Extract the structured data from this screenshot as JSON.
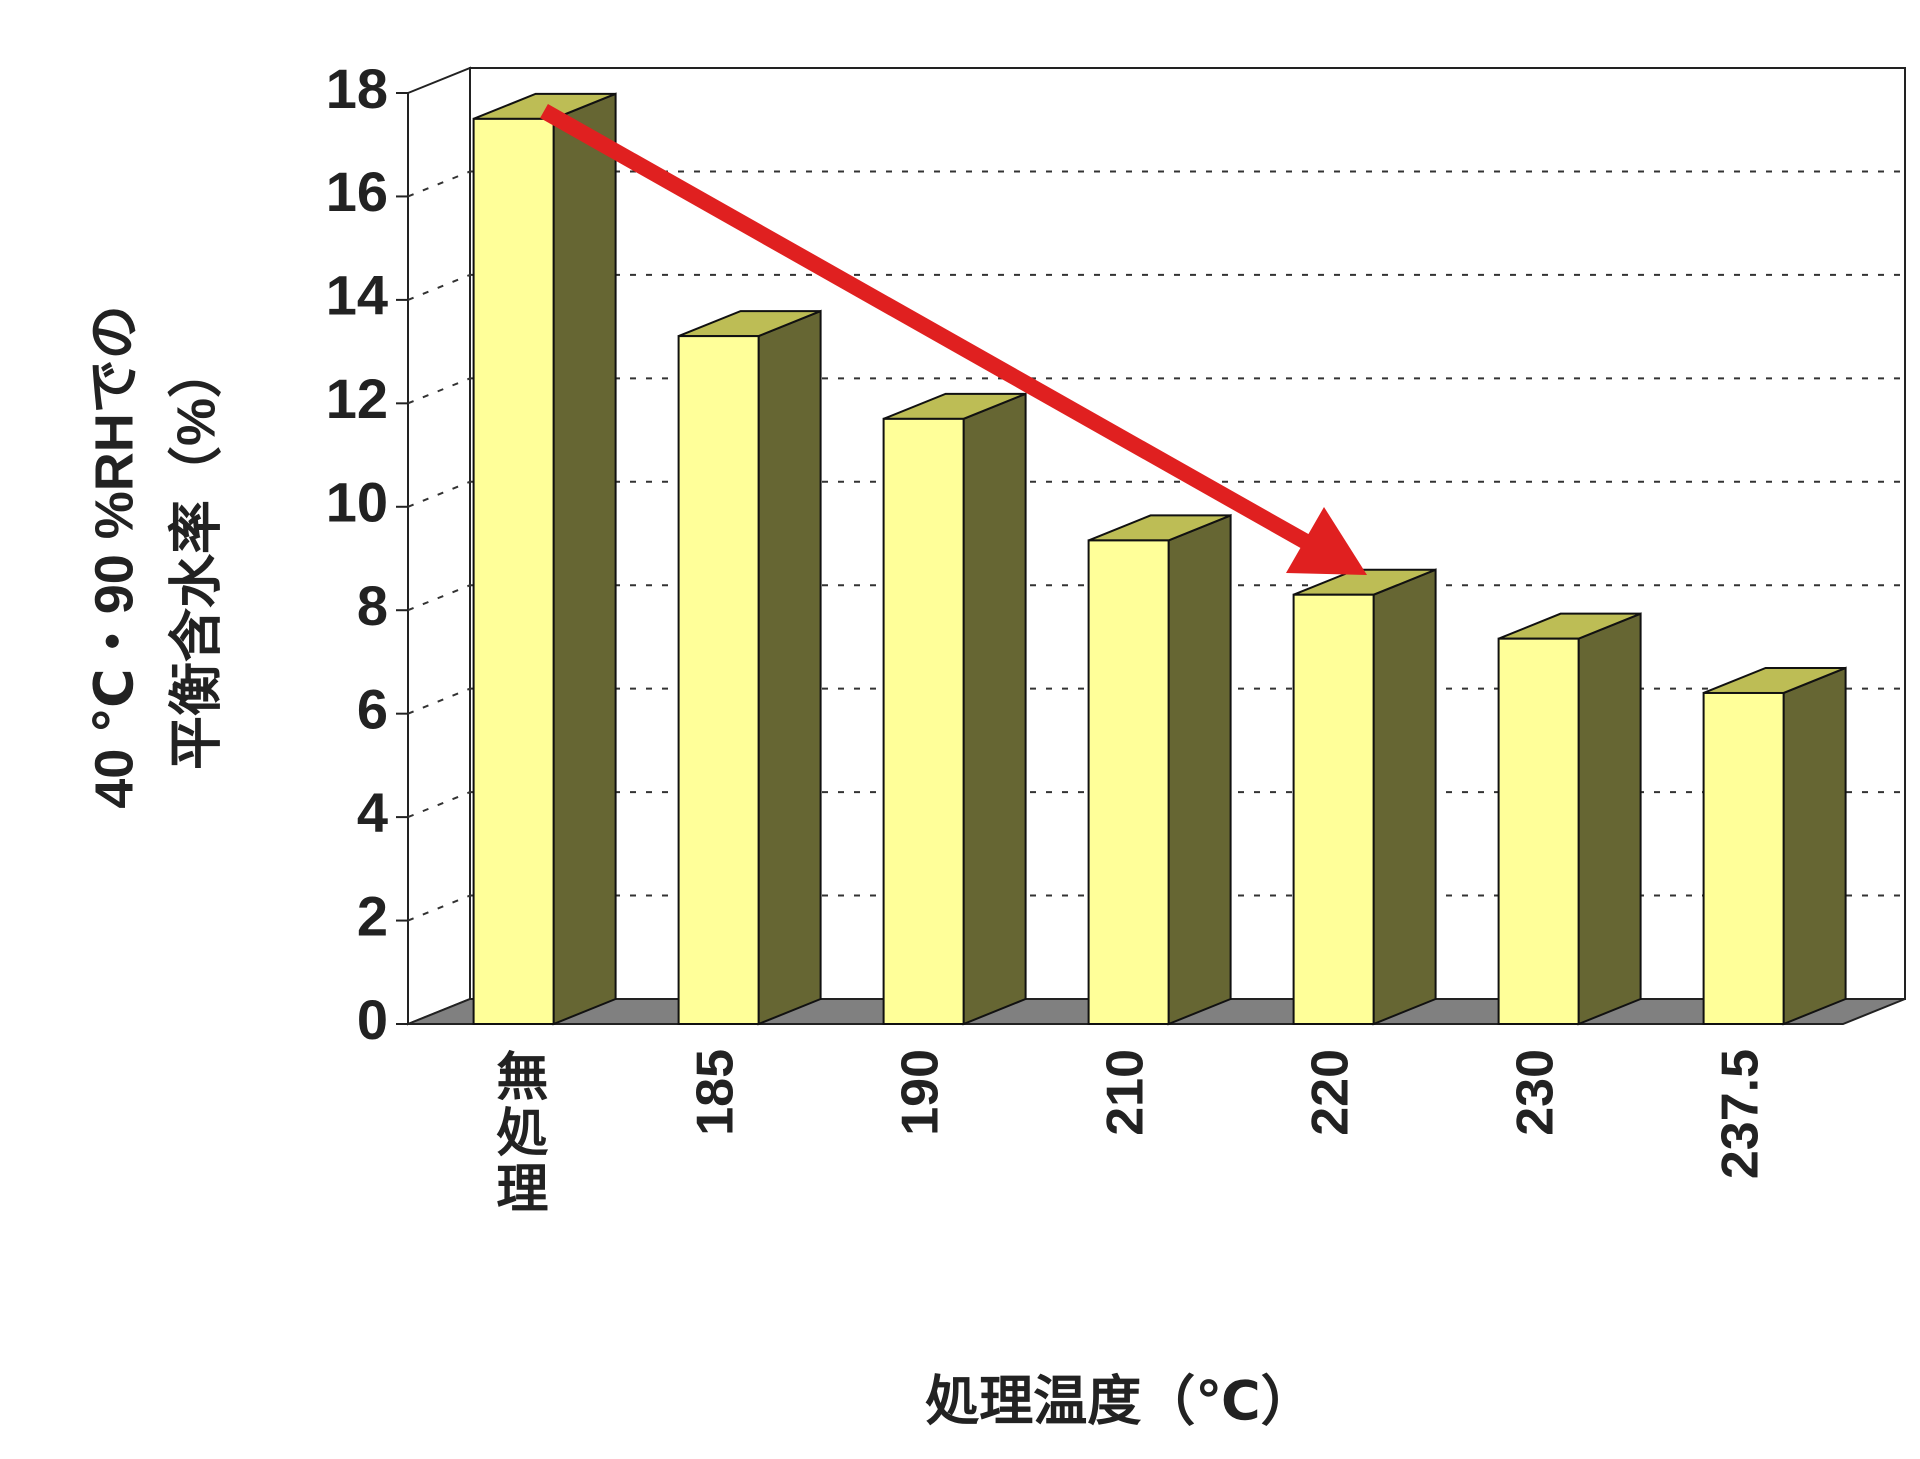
{
  "chart_data": {
    "type": "bar3d",
    "y_label": [
      "40 ℃・90 %RHでの",
      "平衡含水率（%）"
    ],
    "x_label": "処理温度（℃）",
    "categories": [
      "無処理",
      "185",
      "190",
      "210",
      "220",
      "230",
      "237.5"
    ],
    "values": [
      17.5,
      13.3,
      11.7,
      9.35,
      8.3,
      7.45,
      6.4
    ],
    "color": "#ffff99",
    "side_color": "#666633",
    "top_color": "#bdbd55",
    "ylim": [
      0,
      18
    ],
    "yticks": [
      0,
      2,
      4,
      6,
      8,
      10,
      12,
      14,
      16,
      18
    ],
    "grid": true
  }
}
